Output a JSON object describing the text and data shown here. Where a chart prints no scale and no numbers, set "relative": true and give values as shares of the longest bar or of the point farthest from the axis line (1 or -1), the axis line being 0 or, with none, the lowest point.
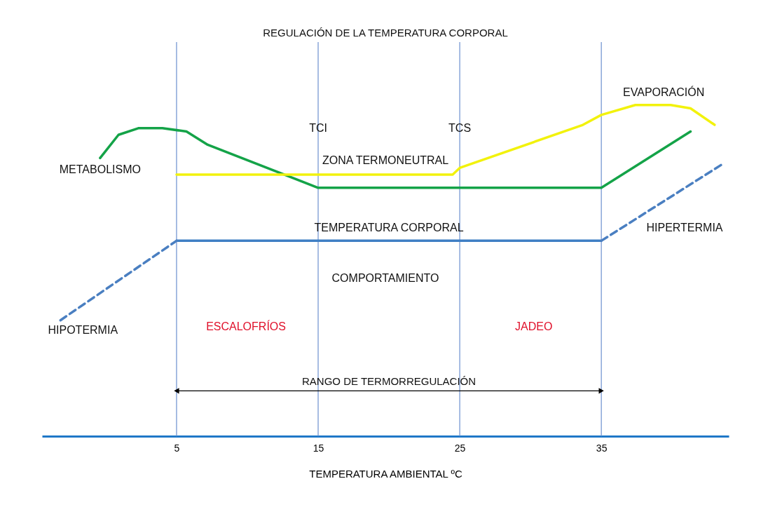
{
  "chart_data": {
    "type": "line",
    "title": "REGULACIÓN DE LA TEMPERATURA CORPORAL",
    "xlabel": "TEMPERATURA AMBIENTAL ºC",
    "relative": true,
    "xlim": [
      -4.5,
      44
    ],
    "xticks": [
      5,
      15,
      25,
      35
    ],
    "tick_labels": "x",
    "grid": false,
    "marker": "none",
    "series": [
      {
        "name": "METABOLISMO",
        "color": "#14a348",
        "x": [
          -0.4,
          0.9,
          2.3,
          4.0,
          5.7,
          7.2,
          15,
          35,
          41.3
        ],
        "values": [
          0.84,
          0.91,
          0.93,
          0.93,
          0.92,
          0.88,
          0.75,
          0.75,
          0.92
        ]
      },
      {
        "name": "EVAPORACIÓN",
        "color": "#f2f20c",
        "x": [
          5,
          24.5,
          25,
          33.7,
          35,
          37.4,
          39.9,
          41.3,
          43
        ],
        "values": [
          0.79,
          0.79,
          0.81,
          0.94,
          0.97,
          1.0,
          1.0,
          0.99,
          0.94
        ]
      },
      {
        "name": "TEMPERATURA CORPORAL",
        "color": "#3f7fc4",
        "x": [
          5,
          35
        ],
        "values": [
          0.59,
          0.59
        ]
      },
      {
        "name": "HIPOTERMIA",
        "color": "#4a7fc1",
        "line_style": "dashed",
        "x": [
          -3.2,
          5
        ],
        "values": [
          0.35,
          0.59
        ]
      },
      {
        "name": "HIPERTERMIA",
        "color": "#4a7fc1",
        "line_style": "dashed",
        "x": [
          35,
          43.5
        ],
        "values": [
          0.59,
          0.82
        ]
      }
    ],
    "ref_lines": [
      {
        "axis": "x",
        "value": 5,
        "color": "#6b8fcf"
      },
      {
        "axis": "x",
        "value": 15,
        "color": "#6b8fcf"
      },
      {
        "axis": "x",
        "value": 25,
        "color": "#6b8fcf"
      },
      {
        "axis": "x",
        "value": 35,
        "color": "#6b8fcf"
      }
    ],
    "annotations": [
      {
        "text": "TCI",
        "x": 15,
        "y": 0.93
      },
      {
        "text": "TCS",
        "x": 25,
        "y": 0.93
      },
      "ZONA TERMONEUTRAL",
      "COMPORTAMIENTO",
      "ESCALOFRÍOS",
      "JADEO",
      "RANGO DE TERMORREGULACIÓN"
    ]
  }
}
